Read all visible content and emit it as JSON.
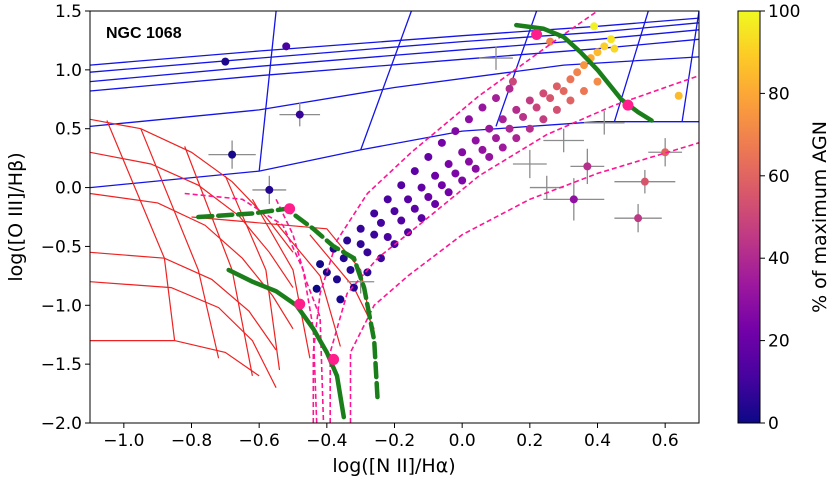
{
  "chart_data": {
    "type": "scatter",
    "title": "",
    "xlabel": "log([N II]/Hα)",
    "ylabel": "log([O III]/Hβ)",
    "xlim": [
      -1.1,
      0.7
    ],
    "ylim": [
      -2.0,
      1.5
    ],
    "x_ticks": [
      -1.0,
      -0.8,
      -0.6,
      -0.4,
      -0.2,
      0.0,
      0.2,
      0.4,
      0.6
    ],
    "x_tick_labels": [
      "−1.0",
      "−0.8",
      "−0.6",
      "−0.4",
      "−0.2",
      "0.0",
      "0.2",
      "0.4",
      "0.6"
    ],
    "y_ticks": [
      -2.0,
      -1.5,
      -1.0,
      -0.5,
      0.0,
      0.5,
      1.0,
      1.5
    ],
    "y_tick_labels": [
      "−2.0",
      "−1.5",
      "−1.0",
      "−0.5",
      "0.0",
      "0.5",
      "1.0",
      "1.5"
    ],
    "annotation": "NGC 1068",
    "colorbar": {
      "label": "% of maximum AGN",
      "range": [
        0,
        100
      ],
      "ticks": [
        0,
        20,
        40,
        60,
        80,
        100
      ],
      "colormap": [
        "#0d0887",
        "#46039f",
        "#7201a8",
        "#9c179e",
        "#bd3786",
        "#d8576b",
        "#ed7953",
        "#fb9f3a",
        "#fdca26",
        "#f0f921"
      ]
    },
    "points": [
      {
        "x": -0.43,
        "y": -0.86,
        "c": 0
      },
      {
        "x": -0.4,
        "y": -0.72,
        "c": 2
      },
      {
        "x": -0.37,
        "y": -0.78,
        "c": 3
      },
      {
        "x": -0.35,
        "y": -0.6,
        "c": 4
      },
      {
        "x": -0.33,
        "y": -0.7,
        "c": 5
      },
      {
        "x": -0.3,
        "y": -0.48,
        "c": 7
      },
      {
        "x": -0.28,
        "y": -0.55,
        "c": 8
      },
      {
        "x": -0.26,
        "y": -0.4,
        "c": 9
      },
      {
        "x": -0.24,
        "y": -0.3,
        "c": 11
      },
      {
        "x": -0.22,
        "y": -0.42,
        "c": 12
      },
      {
        "x": -0.2,
        "y": -0.2,
        "c": 13
      },
      {
        "x": -0.18,
        "y": -0.28,
        "c": 14
      },
      {
        "x": -0.16,
        "y": -0.1,
        "c": 16
      },
      {
        "x": -0.14,
        "y": -0.18,
        "c": 17
      },
      {
        "x": -0.12,
        "y": 0.0,
        "c": 18
      },
      {
        "x": -0.1,
        "y": -0.08,
        "c": 20
      },
      {
        "x": -0.08,
        "y": 0.1,
        "c": 21
      },
      {
        "x": -0.06,
        "y": 0.02,
        "c": 22
      },
      {
        "x": -0.04,
        "y": 0.2,
        "c": 24
      },
      {
        "x": -0.02,
        "y": 0.12,
        "c": 25
      },
      {
        "x": 0.0,
        "y": 0.3,
        "c": 27
      },
      {
        "x": 0.02,
        "y": 0.22,
        "c": 28
      },
      {
        "x": 0.04,
        "y": 0.4,
        "c": 30
      },
      {
        "x": 0.06,
        "y": 0.32,
        "c": 31
      },
      {
        "x": 0.08,
        "y": 0.5,
        "c": 33
      },
      {
        "x": 0.1,
        "y": 0.42,
        "c": 35
      },
      {
        "x": 0.12,
        "y": 0.58,
        "c": 37
      },
      {
        "x": 0.14,
        "y": 0.5,
        "c": 39
      },
      {
        "x": 0.16,
        "y": 0.66,
        "c": 41
      },
      {
        "x": 0.18,
        "y": 0.6,
        "c": 43
      },
      {
        "x": 0.2,
        "y": 0.74,
        "c": 46
      },
      {
        "x": 0.22,
        "y": 0.68,
        "c": 49
      },
      {
        "x": 0.24,
        "y": 0.8,
        "c": 52
      },
      {
        "x": 0.26,
        "y": 0.76,
        "c": 55
      },
      {
        "x": 0.28,
        "y": 0.86,
        "c": 58
      },
      {
        "x": 0.3,
        "y": 0.82,
        "c": 61
      },
      {
        "x": 0.32,
        "y": 0.92,
        "c": 65
      },
      {
        "x": 0.34,
        "y": 0.98,
        "c": 70
      },
      {
        "x": 0.36,
        "y": 1.04,
        "c": 75
      },
      {
        "x": 0.38,
        "y": 1.1,
        "c": 80
      },
      {
        "x": 0.4,
        "y": 1.15,
        "c": 85
      },
      {
        "x": 0.42,
        "y": 1.2,
        "c": 90
      },
      {
        "x": 0.44,
        "y": 1.26,
        "c": 95
      },
      {
        "x": -0.42,
        "y": -0.65,
        "c": 1
      },
      {
        "x": -0.38,
        "y": -0.52,
        "c": 3
      },
      {
        "x": -0.34,
        "y": -0.45,
        "c": 6
      },
      {
        "x": -0.3,
        "y": -0.35,
        "c": 8
      },
      {
        "x": -0.26,
        "y": -0.22,
        "c": 10
      },
      {
        "x": -0.22,
        "y": -0.1,
        "c": 12
      },
      {
        "x": -0.18,
        "y": 0.02,
        "c": 15
      },
      {
        "x": -0.14,
        "y": 0.14,
        "c": 17
      },
      {
        "x": -0.1,
        "y": 0.26,
        "c": 19
      },
      {
        "x": -0.06,
        "y": 0.38,
        "c": 23
      },
      {
        "x": -0.02,
        "y": 0.48,
        "c": 26
      },
      {
        "x": 0.02,
        "y": 0.58,
        "c": 29
      },
      {
        "x": 0.06,
        "y": 0.68,
        "c": 32
      },
      {
        "x": 0.1,
        "y": 0.76,
        "c": 36
      },
      {
        "x": 0.14,
        "y": 0.84,
        "c": 40
      },
      {
        "x": -0.36,
        "y": -0.95,
        "c": 2
      },
      {
        "x": -0.32,
        "y": -0.85,
        "c": 4
      },
      {
        "x": -0.28,
        "y": -0.72,
        "c": 6
      },
      {
        "x": -0.24,
        "y": -0.6,
        "c": 9
      },
      {
        "x": -0.2,
        "y": -0.48,
        "c": 11
      },
      {
        "x": -0.16,
        "y": -0.38,
        "c": 14
      },
      {
        "x": -0.12,
        "y": -0.26,
        "c": 16
      },
      {
        "x": -0.08,
        "y": -0.14,
        "c": 19
      },
      {
        "x": -0.04,
        "y": -0.04,
        "c": 22
      },
      {
        "x": 0.0,
        "y": 0.06,
        "c": 25
      },
      {
        "x": 0.04,
        "y": 0.16,
        "c": 28
      },
      {
        "x": 0.08,
        "y": 0.26,
        "c": 31
      },
      {
        "x": 0.12,
        "y": 0.34,
        "c": 34
      },
      {
        "x": 0.16,
        "y": 0.42,
        "c": 38
      },
      {
        "x": 0.2,
        "y": 0.5,
        "c": 42
      },
      {
        "x": 0.24,
        "y": 0.58,
        "c": 47
      },
      {
        "x": 0.28,
        "y": 0.66,
        "c": 53
      },
      {
        "x": 0.32,
        "y": 0.74,
        "c": 59
      },
      {
        "x": 0.36,
        "y": 0.82,
        "c": 66
      },
      {
        "x": 0.4,
        "y": 0.9,
        "c": 72
      },
      {
        "x": -0.7,
        "y": 1.07,
        "c": 3
      },
      {
        "x": -0.68,
        "y": 0.28,
        "c": 2
      },
      {
        "x": -0.57,
        "y": -0.02,
        "c": 4
      },
      {
        "x": -0.48,
        "y": 0.62,
        "c": 8
      },
      {
        "x": -0.52,
        "y": 1.2,
        "c": 12
      },
      {
        "x": 0.33,
        "y": -0.1,
        "c": 30
      },
      {
        "x": 0.37,
        "y": 0.18,
        "c": 42
      },
      {
        "x": 0.54,
        "y": 0.05,
        "c": 55
      },
      {
        "x": 0.52,
        "y": -0.26,
        "c": 45
      },
      {
        "x": 0.6,
        "y": 0.3,
        "c": 60
      },
      {
        "x": 0.64,
        "y": 0.78,
        "c": 85
      },
      {
        "x": 0.39,
        "y": 1.37,
        "c": 98
      },
      {
        "x": 0.45,
        "y": 1.18,
        "c": 92
      },
      {
        "x": 0.26,
        "y": 1.24,
        "c": 70
      },
      {
        "x": 0.15,
        "y": 0.9,
        "c": 50
      }
    ],
    "error_bars": [
      {
        "x": -0.68,
        "y": 0.28,
        "dx": 0.07,
        "dy": 0.12
      },
      {
        "x": -0.57,
        "y": -0.02,
        "dx": 0.05,
        "dy": 0.12
      },
      {
        "x": -0.48,
        "y": 0.62,
        "dx": 0.06,
        "dy": 0.1
      },
      {
        "x": 0.33,
        "y": -0.1,
        "dx": 0.09,
        "dy": 0.18
      },
      {
        "x": 0.37,
        "y": 0.18,
        "dx": 0.05,
        "dy": 0.15
      },
      {
        "x": 0.54,
        "y": 0.05,
        "dx": 0.09,
        "dy": 0.1
      },
      {
        "x": 0.52,
        "y": -0.26,
        "dx": 0.07,
        "dy": 0.12
      },
      {
        "x": 0.6,
        "y": 0.3,
        "dx": 0.05,
        "dy": 0.12
      },
      {
        "x": 0.3,
        "y": 0.4,
        "dx": 0.06,
        "dy": 0.1
      },
      {
        "x": 0.2,
        "y": 0.2,
        "dx": 0.05,
        "dy": 0.12
      },
      {
        "x": 0.42,
        "y": 0.55,
        "dx": 0.06,
        "dy": 0.1
      },
      {
        "x": 0.25,
        "y": 0.0,
        "dx": 0.05,
        "dy": 0.1
      },
      {
        "x": -0.3,
        "y": -0.8,
        "dx": 0.04,
        "dy": 0.1
      },
      {
        "x": 0.1,
        "y": 1.1,
        "dx": 0.05,
        "dy": 0.1
      }
    ],
    "blue_grid": [
      [
        [
          -1.1,
          1.04
        ],
        [
          -0.6,
          1.16
        ],
        [
          0.0,
          1.29
        ],
        [
          0.4,
          1.37
        ],
        [
          0.7,
          1.44
        ]
      ],
      [
        [
          -1.1,
          0.98
        ],
        [
          -0.6,
          1.1
        ],
        [
          0.0,
          1.24
        ],
        [
          0.4,
          1.32
        ],
        [
          0.7,
          1.4
        ]
      ],
      [
        [
          -1.1,
          0.9
        ],
        [
          -0.6,
          1.03
        ],
        [
          0.0,
          1.17
        ],
        [
          0.4,
          1.26
        ],
        [
          0.7,
          1.34
        ]
      ],
      [
        [
          -1.1,
          0.82
        ],
        [
          -0.6,
          0.95
        ],
        [
          0.0,
          1.09
        ],
        [
          0.4,
          1.18
        ],
        [
          0.7,
          1.26
        ]
      ],
      [
        [
          -1.1,
          0.52
        ],
        [
          -0.6,
          0.66
        ],
        [
          -0.2,
          0.85
        ],
        [
          0.3,
          1.04
        ],
        [
          0.7,
          1.11
        ]
      ],
      [
        [
          -1.1,
          0.0
        ],
        [
          -0.6,
          0.14
        ],
        [
          -0.3,
          0.32
        ],
        [
          0.0,
          0.48
        ],
        [
          0.4,
          0.56
        ],
        [
          0.7,
          0.56
        ]
      ],
      [
        [
          -0.55,
          1.5
        ],
        [
          -0.6,
          0.14
        ]
      ],
      [
        [
          -0.15,
          1.5
        ],
        [
          -0.3,
          0.32
        ]
      ],
      [
        [
          0.22,
          1.5
        ],
        [
          0.1,
          0.52
        ]
      ],
      [
        [
          0.55,
          1.5
        ],
        [
          0.45,
          0.56
        ]
      ],
      [
        [
          0.7,
          1.5
        ],
        [
          0.65,
          0.56
        ]
      ]
    ],
    "red_grid": [
      [
        [
          -1.1,
          0.58
        ],
        [
          -0.95,
          0.5
        ],
        [
          -0.8,
          0.3
        ],
        [
          -0.68,
          0.05
        ],
        [
          -0.58,
          -0.25
        ],
        [
          -0.5,
          -0.55
        ]
      ],
      [
        [
          -1.1,
          0.3
        ],
        [
          -0.92,
          0.2
        ],
        [
          -0.78,
          0.02
        ],
        [
          -0.66,
          -0.24
        ],
        [
          -0.57,
          -0.55
        ],
        [
          -0.5,
          -0.85
        ]
      ],
      [
        [
          -1.1,
          -0.05
        ],
        [
          -0.9,
          -0.13
        ],
        [
          -0.76,
          -0.32
        ],
        [
          -0.65,
          -0.6
        ],
        [
          -0.56,
          -0.92
        ],
        [
          -0.5,
          -1.2
        ]
      ],
      [
        [
          -1.1,
          -0.55
        ],
        [
          -0.88,
          -0.6
        ],
        [
          -0.74,
          -0.78
        ],
        [
          -0.63,
          -1.05
        ],
        [
          -0.55,
          -1.38
        ]
      ],
      [
        [
          -1.1,
          -0.8
        ],
        [
          -0.86,
          -0.85
        ],
        [
          -0.72,
          -1.02
        ],
        [
          -0.62,
          -1.3
        ],
        [
          -0.55,
          -1.7
        ]
      ],
      [
        [
          -1.1,
          -1.3
        ],
        [
          -0.85,
          -1.3
        ],
        [
          -0.7,
          -1.4
        ],
        [
          -0.6,
          -1.6
        ]
      ],
      [
        [
          -1.05,
          0.57
        ],
        [
          -0.88,
          -0.6
        ],
        [
          -0.85,
          -1.3
        ]
      ],
      [
        [
          -0.95,
          0.5
        ],
        [
          -0.78,
          -0.7
        ],
        [
          -0.72,
          -1.45
        ]
      ],
      [
        [
          -0.82,
          0.35
        ],
        [
          -0.68,
          -0.7
        ],
        [
          -0.62,
          -1.6
        ]
      ],
      [
        [
          -0.7,
          0.1
        ],
        [
          -0.58,
          -0.7
        ],
        [
          -0.54,
          -1.55
        ]
      ],
      [
        [
          -0.62,
          -0.1
        ],
        [
          -0.5,
          -0.7
        ],
        [
          -0.45,
          -1.45
        ]
      ],
      [
        [
          -0.55,
          -0.3
        ],
        [
          -0.42,
          -0.75
        ],
        [
          -0.36,
          -1.35
        ]
      ],
      [
        [
          -0.45,
          -0.4
        ],
        [
          -0.32,
          -0.85
        ],
        [
          -0.26,
          -1.2
        ]
      ],
      [
        [
          -0.8,
          -0.25
        ],
        [
          -0.4,
          -0.35
        ],
        [
          -0.3,
          -0.7
        ],
        [
          -0.28,
          -1.0
        ]
      ]
    ],
    "green_curves": [
      [
        [
          -0.78,
          -0.25
        ],
        [
          -0.62,
          -0.22
        ],
        [
          -0.52,
          -0.18
        ],
        [
          -0.44,
          -0.35
        ],
        [
          -0.38,
          -0.5
        ],
        [
          -0.32,
          -0.6
        ],
        [
          -0.29,
          -0.85
        ],
        [
          -0.26,
          -1.3
        ],
        [
          -0.25,
          -1.8
        ]
      ],
      [
        [
          -0.69,
          -0.7
        ],
        [
          -0.62,
          -0.8
        ],
        [
          -0.55,
          -0.88
        ],
        [
          -0.49,
          -1.0
        ],
        [
          -0.44,
          -1.2
        ],
        [
          -0.4,
          -1.4
        ],
        [
          -0.37,
          -1.6
        ],
        [
          -0.35,
          -1.95
        ]
      ],
      [
        [
          0.16,
          1.38
        ],
        [
          0.24,
          1.35
        ],
        [
          0.3,
          1.28
        ],
        [
          0.35,
          1.15
        ],
        [
          0.4,
          1.0
        ],
        [
          0.47,
          0.75
        ],
        [
          0.52,
          0.64
        ],
        [
          0.56,
          0.57
        ]
      ]
    ],
    "pink_curves": [
      [
        [
          -0.44,
          -2.0
        ],
        [
          -0.44,
          -1.4
        ],
        [
          -0.42,
          -0.9
        ],
        [
          -0.37,
          -0.45
        ],
        [
          -0.28,
          -0.05
        ],
        [
          -0.15,
          0.3
        ],
        [
          0.05,
          0.78
        ],
        [
          0.18,
          1.05
        ],
        [
          0.3,
          1.3
        ],
        [
          0.4,
          1.5
        ]
      ],
      [
        [
          -0.39,
          -2.0
        ],
        [
          -0.39,
          -1.4
        ],
        [
          -0.34,
          -0.9
        ],
        [
          -0.25,
          -0.6
        ],
        [
          -0.12,
          -0.3
        ],
        [
          0.05,
          0.1
        ],
        [
          0.25,
          0.45
        ],
        [
          0.45,
          0.7
        ],
        [
          0.7,
          0.95
        ]
      ],
      [
        [
          -0.33,
          -2.0
        ],
        [
          -0.33,
          -1.4
        ],
        [
          -0.26,
          -1.0
        ],
        [
          -0.16,
          -0.75
        ],
        [
          0.0,
          -0.4
        ],
        [
          0.2,
          -0.1
        ],
        [
          0.4,
          0.12
        ],
        [
          0.7,
          0.38
        ]
      ],
      [
        [
          -0.82,
          -0.05
        ],
        [
          -0.65,
          -0.1
        ],
        [
          -0.53,
          -0.32
        ],
        [
          -0.47,
          -0.7
        ],
        [
          -0.44,
          -1.2
        ],
        [
          -0.43,
          -2.0
        ]
      ],
      [
        [
          -0.55,
          -0.1
        ],
        [
          -0.5,
          -0.4
        ],
        [
          -0.46,
          -0.8
        ],
        [
          -0.42,
          -1.1
        ],
        [
          -0.41,
          -2.0
        ]
      ]
    ],
    "pink_markers": [
      {
        "x": 0.22,
        "y": 1.3
      },
      {
        "x": 0.49,
        "y": 0.7
      },
      {
        "x": -0.51,
        "y": -0.18
      },
      {
        "x": -0.48,
        "y": -0.99
      },
      {
        "x": -0.38,
        "y": -1.46
      }
    ]
  }
}
